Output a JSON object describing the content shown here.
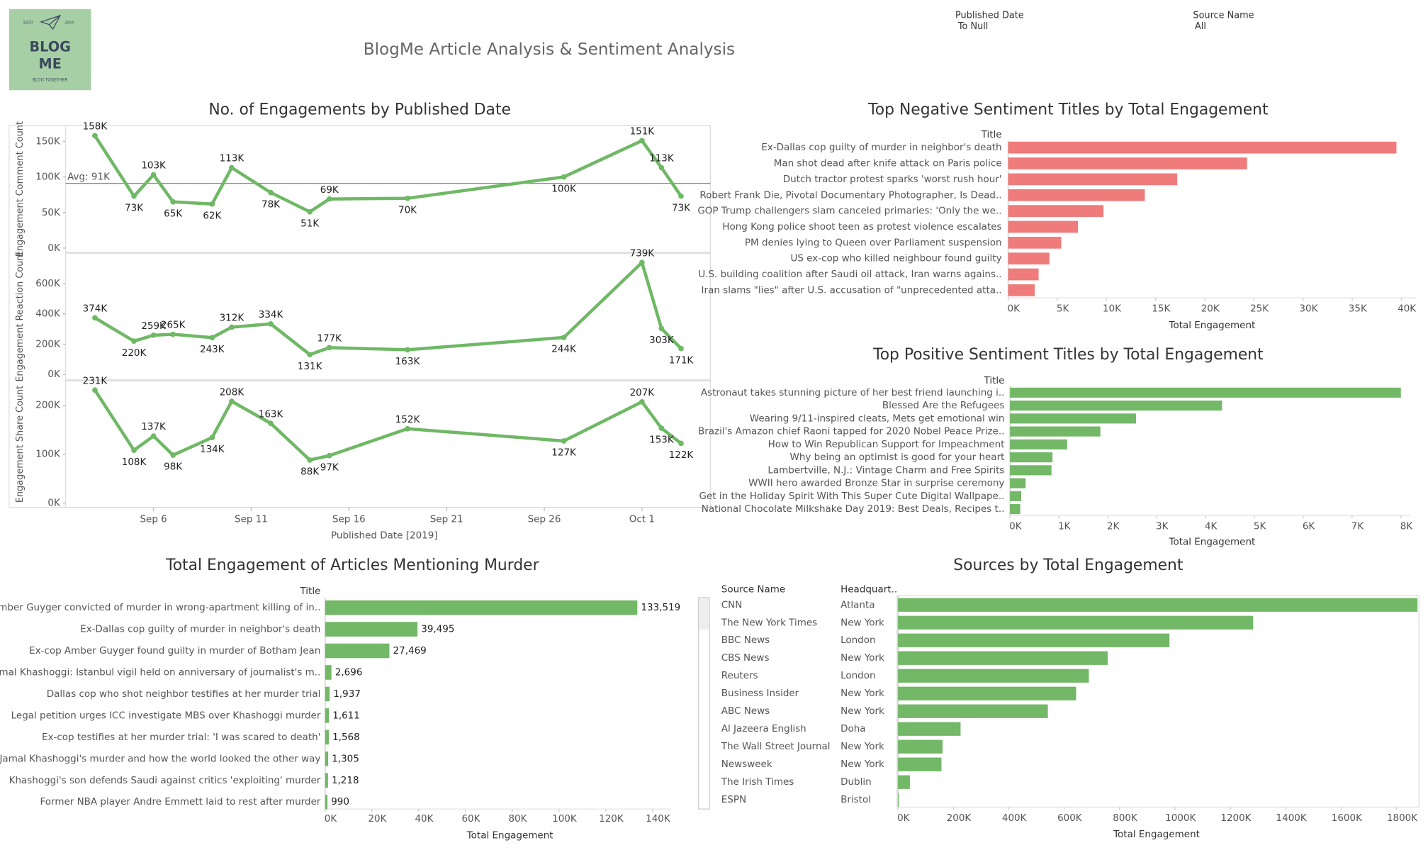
{
  "header": {
    "logo": {
      "left": "ESTD",
      "right": "2004",
      "line1": "BLOG",
      "line2": "ME",
      "tagline": "BLOG TOGETHER"
    },
    "title": "BlogMe Article Analysis & Sentiment Analysis"
  },
  "filters": [
    {
      "label": "Published Date",
      "value": "To Null"
    },
    {
      "label": "Source Name",
      "value": "All"
    }
  ],
  "chart_data": [
    {
      "type": "line",
      "title": "No. of Engagements by Published Date",
      "x_label": "Published Date [2019]",
      "x": [
        "2019-09-03",
        "2019-09-05",
        "2019-09-06",
        "2019-09-07",
        "2019-09-09",
        "2019-09-10",
        "2019-09-12",
        "2019-09-14",
        "2019-09-15",
        "2019-09-19",
        "2019-09-27",
        "2019-10-01",
        "2019-10-02",
        "2019-10-03"
      ],
      "xlim": [
        "2019-09-01T12:00:00Z",
        "2019-10-04T12:00:00Z"
      ],
      "xticks": [
        {
          "value": "2019-09-06",
          "label": "Sep 6"
        },
        {
          "value": "2019-09-11",
          "label": "Sep 11"
        },
        {
          "value": "2019-09-16",
          "label": "Sep 16"
        },
        {
          "value": "2019-09-21",
          "label": "Sep 21"
        },
        {
          "value": "2019-09-26",
          "label": "Sep 26"
        },
        {
          "value": "2019-10-01",
          "label": "Oct 1"
        }
      ],
      "series": [
        {
          "name": "Engagement Comment Count",
          "color": "#6fb865",
          "values": [
            158000,
            73000,
            103000,
            65000,
            62000,
            113000,
            78000,
            51000,
            69000,
            70000,
            100000,
            151000,
            113000,
            73000
          ],
          "value_labels": [
            "158K",
            "73K",
            "103K",
            "65K",
            "62K",
            "113K",
            "78K",
            "51K",
            "69K",
            "70K",
            "100K",
            "151K",
            "113K",
            "73K"
          ],
          "ylim": [
            -6000,
            172000
          ],
          "yticks": [
            {
              "value": 0,
              "label": "0K"
            },
            {
              "value": 50000,
              "label": "50K"
            },
            {
              "value": 100000,
              "label": "100K"
            },
            {
              "value": 150000,
              "label": "150K"
            }
          ],
          "reference_line": {
            "value": 91000,
            "label": "Avg: 91K"
          }
        },
        {
          "name": "Engagement Reaction Count",
          "color": "#6fb865",
          "values": [
            374000,
            220000,
            259000,
            265000,
            243000,
            312000,
            334000,
            131000,
            177000,
            163000,
            244000,
            739000,
            303000,
            171000
          ],
          "value_labels": [
            "374K",
            "220K",
            "259K",
            "265K",
            "243K",
            "312K",
            "334K",
            "131K",
            "177K",
            "163K",
            "244K",
            "739K",
            "303K",
            "171K"
          ],
          "ylim": [
            -36000,
            800000
          ],
          "yticks": [
            {
              "value": 0,
              "label": "0K"
            },
            {
              "value": 200000,
              "label": "200K"
            },
            {
              "value": 400000,
              "label": "400K"
            },
            {
              "value": 600000,
              "label": "600K"
            }
          ]
        },
        {
          "name": "Engagement Share Count",
          "color": "#6fb865",
          "values": [
            231000,
            108000,
            137000,
            98000,
            134000,
            208000,
            163000,
            88000,
            97000,
            152000,
            127000,
            207000,
            153000,
            122000
          ],
          "value_labels": [
            "231K",
            "108K",
            "137K",
            "98K",
            "134K",
            "208K",
            "163K",
            "88K",
            "97K",
            "152K",
            "127K",
            "207K",
            "153K",
            "122K"
          ],
          "ylim": [
            -9000,
            250000
          ],
          "yticks": [
            {
              "value": 0,
              "label": "0K"
            },
            {
              "value": 100000,
              "label": "100K"
            },
            {
              "value": 200000,
              "label": "200K"
            }
          ]
        }
      ]
    },
    {
      "type": "hbar",
      "title": "Top Negative Sentiment Titles by Total Engagement",
      "category_label": "Title",
      "x_label": "Total Engagement",
      "color": "#f07b7b",
      "categories": [
        "Ex-Dallas cop guilty of murder in neighbor's death",
        "Man shot dead after knife attack on Paris police",
        "Dutch tractor protest sparks 'worst rush hour'",
        "Robert Frank Die, Pivotal Documentary Photographer, Is Dead..",
        "GOP Trump challengers slam canceled primaries: 'Only the we..",
        "Hong Kong police shoot teen as protest violence escalates",
        "PM denies lying to Queen over Parliament suspension",
        "US ex-cop who killed neighbour found guilty",
        "U.S. building coalition after Saudi oil attack, Iran warns agains..",
        "Iran slams \"lies\" after U.S. accusation of \"unprecedented atta.."
      ],
      "values": [
        39495,
        24300,
        17200,
        13900,
        9700,
        7100,
        5400,
        4200,
        3100,
        2700
      ],
      "xlim": [
        0,
        41500
      ],
      "xticks": [
        {
          "value": 0,
          "label": "0K"
        },
        {
          "value": 5000,
          "label": "5K"
        },
        {
          "value": 10000,
          "label": "10K"
        },
        {
          "value": 15000,
          "label": "15K"
        },
        {
          "value": 20000,
          "label": "20K"
        },
        {
          "value": 25000,
          "label": "25K"
        },
        {
          "value": 30000,
          "label": "30K"
        },
        {
          "value": 35000,
          "label": "35K"
        },
        {
          "value": 40000,
          "label": "40K"
        }
      ]
    },
    {
      "type": "hbar",
      "title": "Top Positive Sentiment Titles by Total Engagement",
      "category_label": "Title",
      "x_label": "Total Engagement",
      "color": "#72b866",
      "categories": [
        "Astronaut takes stunning picture of her best friend launching i..",
        "Blessed Are the Refugees",
        "Wearing 9/11-inspired cleats, Mets get emotional win",
        "Brazil's Amazon chief Raoni tapped for 2020 Nobel Peace Prize..",
        "How to Win Republican Support for Impeachment",
        "Why being an optimist is good for your heart",
        "Lambertville, N.J.: Vintage Charm and Free Spirits",
        "WWII hero awarded Bronze Star in surprise ceremony",
        "Get in the Holiday Spirit With This Super Cute Digital Wallpape..",
        "National Chocolate Milkshake Day 2019: Best Deals, Recipes t.."
      ],
      "values": [
        8000,
        4340,
        2580,
        1850,
        1170,
        870,
        850,
        320,
        230,
        210
      ],
      "xlim": [
        0,
        8200
      ],
      "xticks": [
        {
          "value": 0,
          "label": "0K"
        },
        {
          "value": 1000,
          "label": "1K"
        },
        {
          "value": 2000,
          "label": "2K"
        },
        {
          "value": 3000,
          "label": "3K"
        },
        {
          "value": 4000,
          "label": "4K"
        },
        {
          "value": 5000,
          "label": "5K"
        },
        {
          "value": 6000,
          "label": "6K"
        },
        {
          "value": 7000,
          "label": "7K"
        },
        {
          "value": 8000,
          "label": "8K"
        }
      ]
    },
    {
      "type": "hbar",
      "title": "Total Engagement of Articles Mentioning Murder",
      "category_label": "Title",
      "x_label": "Total Engagement",
      "color": "#72b866",
      "categories": [
        "Amber Guyger convicted of murder in wrong-apartment killing of in..",
        "Ex-Dallas cop guilty of murder in neighbor's death",
        "Ex-cop Amber Guyger found guilty in murder of Botham Jean",
        "Jamal Khashoggi: Istanbul vigil held on anniversary of journalist's m..",
        "Dallas cop who shot neighbor testifies at her murder trial",
        "Legal petition urges ICC investigate MBS over Khashoggi murder",
        "Ex-cop testifies at her murder trial: 'I was scared to death'",
        "Jamal Khashoggi's murder and how the world looked the other way",
        "Khashoggi's son defends Saudi against critics 'exploiting' murder",
        "Former NBA player Andre Emmett laid to rest after murder"
      ],
      "values": [
        133519,
        39495,
        27469,
        2696,
        1937,
        1611,
        1568,
        1305,
        1218,
        990
      ],
      "value_labels": [
        "133,519",
        "39,495",
        "27,469",
        "2,696",
        "1,937",
        "1,611",
        "1,568",
        "1,305",
        "1,218",
        "990"
      ],
      "xlim": [
        0,
        148000
      ],
      "xticks": [
        {
          "value": 0,
          "label": "0K"
        },
        {
          "value": 20000,
          "label": "20K"
        },
        {
          "value": 40000,
          "label": "40K"
        },
        {
          "value": 60000,
          "label": "60K"
        },
        {
          "value": 80000,
          "label": "80K"
        },
        {
          "value": 100000,
          "label": "100K"
        },
        {
          "value": 120000,
          "label": "120K"
        },
        {
          "value": 140000,
          "label": "140K"
        }
      ]
    },
    {
      "type": "hbar",
      "title": "Sources by Total Engagement",
      "category_label": "Source Name",
      "extra_label": "Headquart..",
      "x_label": "Total Engagement",
      "color": "#72b866",
      "categories": [
        "CNN",
        "The New York Times",
        "BBC News",
        "CBS News",
        "Reuters",
        "Business Insider",
        "ABC News",
        "Al Jazeera English",
        "The Wall Street Journal",
        "Newsweek",
        "The Irish Times",
        "ESPN"
      ],
      "extra": [
        "Atlanta",
        "New York",
        "London",
        "New York",
        "London",
        "New York",
        "New York",
        "Doha",
        "New York",
        "New York",
        "Dublin",
        "Bristol"
      ],
      "values": [
        1875000,
        1282000,
        980000,
        757000,
        689000,
        643000,
        541000,
        226000,
        161000,
        157000,
        43000,
        3000
      ],
      "xlim": [
        0,
        1880000
      ],
      "xticks": [
        {
          "value": 0,
          "label": "0K"
        },
        {
          "value": 200000,
          "label": "200K"
        },
        {
          "value": 400000,
          "label": "400K"
        },
        {
          "value": 600000,
          "label": "600K"
        },
        {
          "value": 800000,
          "label": "800K"
        },
        {
          "value": 1000000,
          "label": "1000K"
        },
        {
          "value": 1200000,
          "label": "1200K"
        },
        {
          "value": 1400000,
          "label": "1400K"
        },
        {
          "value": 1600000,
          "label": "1600K"
        },
        {
          "value": 1800000,
          "label": "1800K"
        }
      ]
    }
  ]
}
